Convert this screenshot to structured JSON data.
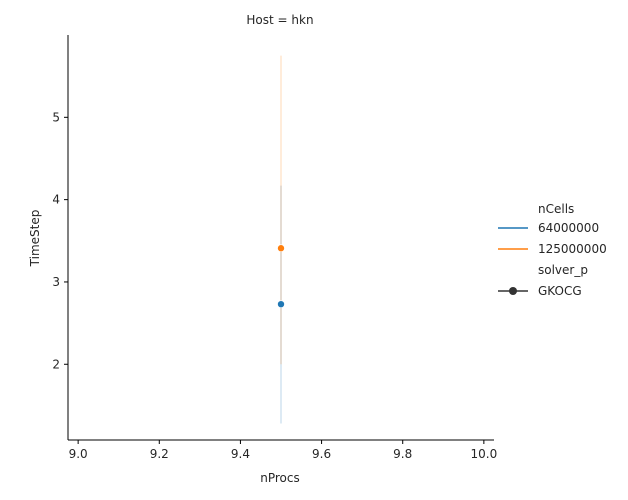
{
  "chart_data": {
    "type": "line",
    "title": "Host = hkn",
    "xlabel": "nProcs",
    "ylabel": "TimeStep",
    "xlim": [
      8.975,
      10.025
    ],
    "ylim": [
      1.08,
      6.0
    ],
    "x_ticks": [
      9.0,
      9.2,
      9.4,
      9.6,
      9.8,
      10.0
    ],
    "x_tick_labels": [
      "9.0",
      "9.2",
      "9.4",
      "9.6",
      "9.8",
      "10.0"
    ],
    "y_ticks": [
      2,
      3,
      4,
      5
    ],
    "y_tick_labels": [
      "2",
      "3",
      "4",
      "5"
    ],
    "grid": false,
    "legend_position": "right",
    "legend": {
      "hue_title": "nCells",
      "style_title": "solver_p",
      "style_entry": "GKOCG"
    },
    "series": [
      {
        "name": "64000000",
        "color": "#1f77b4",
        "x": [
          9.5
        ],
        "y": [
          2.73
        ],
        "ci": [
          1.28,
          4.17
        ]
      },
      {
        "name": "125000000",
        "color": "#ff7f0e",
        "x": [
          9.5
        ],
        "y": [
          3.41
        ],
        "ci": [
          2.0,
          5.75
        ]
      }
    ]
  }
}
